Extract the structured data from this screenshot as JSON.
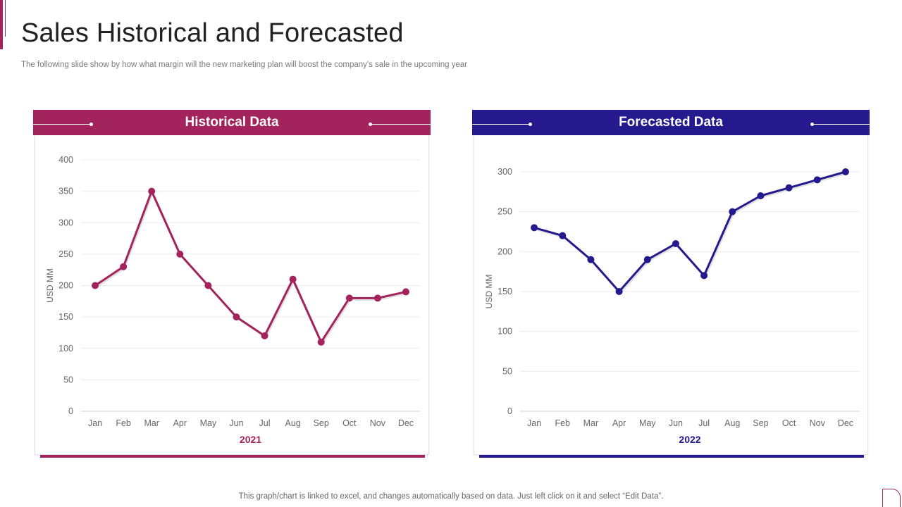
{
  "slide": {
    "title": "Sales Historical and Forecasted",
    "subtitle": "The following slide show by how what margin will the new marketing plan will boost the company's sale in the upcoming year",
    "footer": "This graph/chart is linked to excel, and changes automatically based on data. Just left click on it and select “Edit Data”."
  },
  "colors": {
    "historical": "#a3245c",
    "forecasted": "#241a8e"
  },
  "chart_data": [
    {
      "type": "line",
      "title": "Historical Data",
      "xlabel": "2021",
      "ylabel": "USD MM",
      "categories": [
        "Jan",
        "Feb",
        "Mar",
        "Apr",
        "May",
        "Jun",
        "Jul",
        "Aug",
        "Sep",
        "Oct",
        "Nov",
        "Dec"
      ],
      "series": [
        {
          "name": "Historical",
          "values": [
            200,
            230,
            350,
            250,
            200,
            150,
            120,
            210,
            110,
            180,
            180,
            190
          ]
        }
      ],
      "ylim": [
        0,
        400
      ],
      "yticks": [
        0,
        50,
        100,
        150,
        200,
        250,
        300,
        350,
        400
      ],
      "grid": true
    },
    {
      "type": "line",
      "title": "Forecasted Data",
      "xlabel": "2022",
      "ylabel": "USD MM",
      "categories": [
        "Jan",
        "Feb",
        "Mar",
        "Apr",
        "May",
        "Jun",
        "Jul",
        "Aug",
        "Sep",
        "Oct",
        "Nov",
        "Dec"
      ],
      "series": [
        {
          "name": "Forecasted",
          "values": [
            230,
            220,
            190,
            150,
            190,
            210,
            170,
            250,
            270,
            280,
            290,
            300
          ]
        }
      ],
      "ylim": [
        0,
        300
      ],
      "yticks": [
        0,
        50,
        100,
        150,
        200,
        250,
        300
      ],
      "grid": true
    }
  ]
}
